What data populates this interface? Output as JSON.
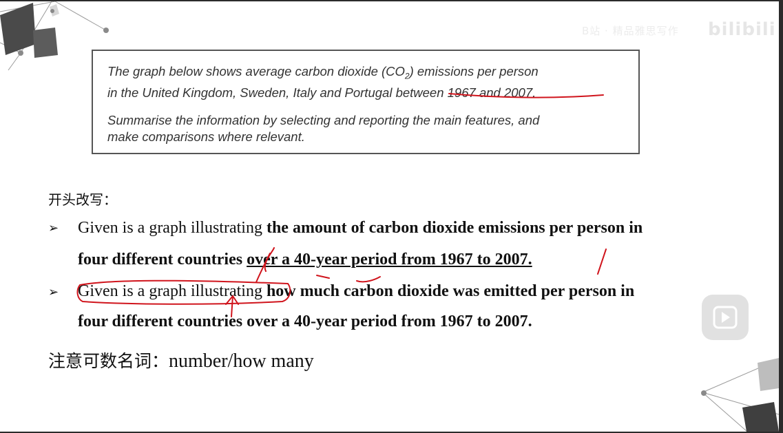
{
  "watermark": {
    "text": "B站 · 精品雅思写作",
    "logo": "bilibili"
  },
  "prompt": {
    "line1": "The graph below shows average carbon dioxide (CO",
    "co2_sub": "2",
    "line1b": ") emissions per person",
    "line2a": "in the United Kingdom, Sweden, Italy and Portugal ",
    "line2b": "between 1967 and 2007",
    "line2c": ".",
    "instr1": "Summarise the information by selecting and reporting the main features, and",
    "instr2": "make comparisons where relevant."
  },
  "subheading": "开头改写：",
  "bullets": [
    {
      "marker": "➢",
      "l1_plain": "Given is a graph illustrating ",
      "l1_bold": "the amount of carbon dioxide emissions per person in",
      "l2_bold": "four different countries ",
      "l2_bold_u": "over a 40-year period from 1967 to 2007."
    },
    {
      "marker": "➢",
      "l1_plain": "Given is a graph illustrating",
      "l1_bold": " how much carbon dioxide was emitted per person in",
      "l2_bold": "four different countries over a 40-year period from 1967 to 2007."
    }
  ],
  "note": {
    "cn": "注意可数名词：",
    "en": "number/how many"
  },
  "colors": {
    "annotation": "#d0141c",
    "text": "#111111",
    "box_border": "#555555"
  }
}
